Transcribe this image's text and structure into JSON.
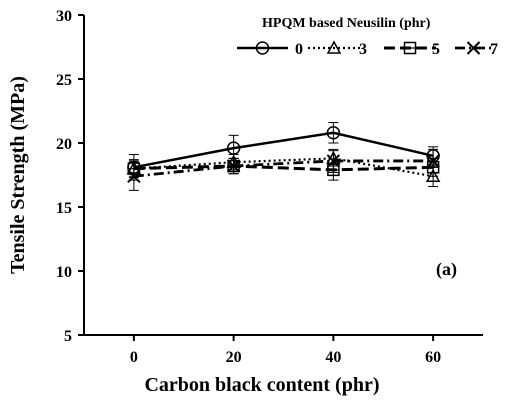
{
  "chart_data": {
    "type": "line",
    "xlabel": "Carbon black content (phr)",
    "ylabel": "Tensile Strength (MPa)",
    "x": [
      0,
      20,
      40,
      60
    ],
    "xticks": [
      "0",
      "20",
      "40",
      "60"
    ],
    "xlim": [
      -10,
      70
    ],
    "yticks": [
      "5",
      "10",
      "15",
      "20",
      "25",
      "30"
    ],
    "ylim": [
      5,
      30
    ],
    "grid": false,
    "legend_title": "HPQM based Neusilin (phr)",
    "legend_position": "top-right",
    "panel_label": "(a)",
    "series": [
      {
        "name": "0",
        "marker": "circle",
        "dash": "solid",
        "values": [
          18.1,
          19.6,
          20.8,
          19.0
        ],
        "errors": [
          1.0,
          1.0,
          0.8,
          0.7
        ]
      },
      {
        "name": "3",
        "marker": "triangle",
        "dash": "dotted",
        "values": [
          18.0,
          18.5,
          18.8,
          17.4
        ],
        "errors": [
          0.7,
          0.6,
          0.6,
          0.8
        ]
      },
      {
        "name": "5",
        "marker": "square",
        "dash": "dashed",
        "values": [
          18.0,
          18.2,
          17.9,
          18.1
        ],
        "errors": [
          0.6,
          0.6,
          0.8,
          0.7
        ]
      },
      {
        "name": "7",
        "marker": "cross",
        "dash": "dashdot",
        "values": [
          17.4,
          18.2,
          18.6,
          18.6
        ],
        "errors": [
          1.1,
          0.6,
          0.9,
          0.9
        ]
      }
    ]
  }
}
